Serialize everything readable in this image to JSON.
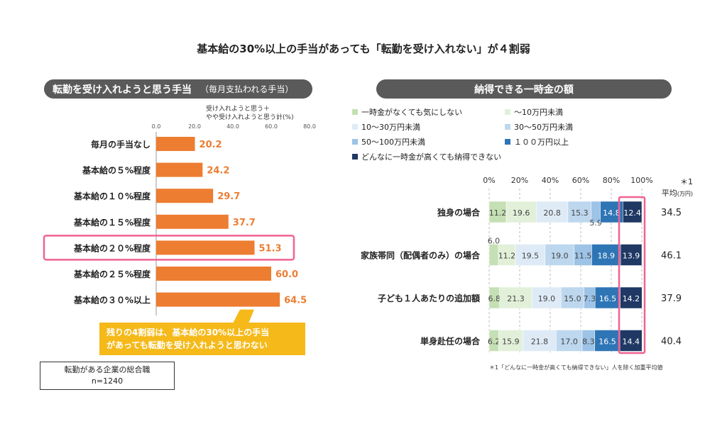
{
  "main_title": "基本給の30%以上の手当があっても「転勤を受け入れない」が４割弱",
  "left_header": {
    "title": "転勤を受け入れようと思う手当",
    "subtitle": "（毎月支払われる手当）"
  },
  "right_header": {
    "title": "納得できる一時金の額"
  },
  "callout": {
    "line1": "残りの4割弱は、基本給の30%以上の手当",
    "line2": "があっても転勤を受け入れようと思わない"
  },
  "sample_box": {
    "line1": "転勤がある企業の総合職",
    "line2": "n=1240"
  },
  "footnote": "＊1「どんなに一時金が高くても納得できない」人を除く加重平均値",
  "avg_header": {
    "mark": "＊1",
    "label": "平均",
    "unit": "(万円)"
  },
  "chart_data": [
    {
      "type": "bar",
      "orientation": "horizontal",
      "xlabel_line1": "受け入れようと思う＋",
      "xlabel_line2": "やや受け入れようと思う計(%)",
      "xlim": [
        0,
        80
      ],
      "ticks": [
        "0.0",
        "20.0",
        "40.0",
        "60.0",
        "80.0"
      ],
      "categories": [
        "毎月の手当なし",
        "基本給の５%程度",
        "基本給の１０%程度",
        "基本給の１５%程度",
        "基本給の２０%程度",
        "基本給の２５%程度",
        "基本給の３０%以上"
      ],
      "values": [
        20.2,
        24.2,
        29.7,
        37.7,
        51.3,
        60.0,
        64.5
      ],
      "labels": [
        "20.2",
        "24.2",
        "29.7",
        "37.7",
        "51.3",
        "60.0",
        "64.5"
      ],
      "highlight_index": 4,
      "bar_color": "#ed7d31"
    },
    {
      "type": "bar",
      "orientation": "horizontal",
      "stacked": "percent",
      "xlim": [
        0,
        100
      ],
      "ticks": [
        "0%",
        "20%",
        "40%",
        "60%",
        "80%",
        "100%"
      ],
      "categories": [
        "独身の場合",
        "家族帯同（配偶者のみ）の場合",
        "子ども１人あたりの追加額",
        "単身赴任の場合"
      ],
      "series": [
        {
          "name": "一時金がなくても気にしない",
          "color": "#c5e0b4",
          "text_color": "#444444",
          "values": [
            11.2,
            6.0,
            6.8,
            6.2
          ],
          "labels": [
            "11.2",
            "6.0",
            "6.8",
            "6.2"
          ]
        },
        {
          "name": "～10万円未満",
          "color": "#e2f0d9",
          "text_color": "#444444",
          "values": [
            19.6,
            11.2,
            21.3,
            15.9
          ],
          "labels": [
            "19.6",
            "11.2",
            "21.3",
            "15.9"
          ]
        },
        {
          "name": "10～30万円未満",
          "color": "#deebf7",
          "text_color": "#444444",
          "values": [
            20.8,
            19.5,
            19.0,
            21.8
          ],
          "labels": [
            "20.8",
            "19.5",
            "19.0",
            "21.8"
          ]
        },
        {
          "name": "30～50万円未満",
          "color": "#bdd7ee",
          "text_color": "#444444",
          "values": [
            15.3,
            19.0,
            15.0,
            17.0
          ],
          "labels": [
            "15.3",
            "19.0",
            "15.0",
            "17.0"
          ]
        },
        {
          "name": "50～100万円未満",
          "color": "#9dc3e6",
          "text_color": "#444444",
          "values": [
            5.9,
            11.5,
            7.3,
            8.3
          ],
          "labels": [
            "5.9",
            "11.5",
            "7.3",
            "8.3"
          ]
        },
        {
          "name": "１００万円以上",
          "color": "#2e75b6",
          "text_color": "#ffffff",
          "values": [
            14.8,
            18.9,
            16.5,
            16.5
          ],
          "labels": [
            "14.8",
            "18.9",
            "16.5",
            "16.5"
          ]
        },
        {
          "name": "どんなに一時金が高くても納得できない",
          "color": "#1f3864",
          "text_color": "#ffffff",
          "values": [
            12.4,
            13.9,
            14.2,
            14.4
          ],
          "labels": [
            "12.4",
            "13.9",
            "14.2",
            "14.4"
          ]
        }
      ],
      "averages": [
        "34.5",
        "46.1",
        "37.9",
        "40.4"
      ],
      "highlight_series_index": 6
    }
  ],
  "colors": {
    "highlight": "#f06292",
    "header_bg": "#5a5a5a",
    "callout_bg": "#f5b91a"
  }
}
